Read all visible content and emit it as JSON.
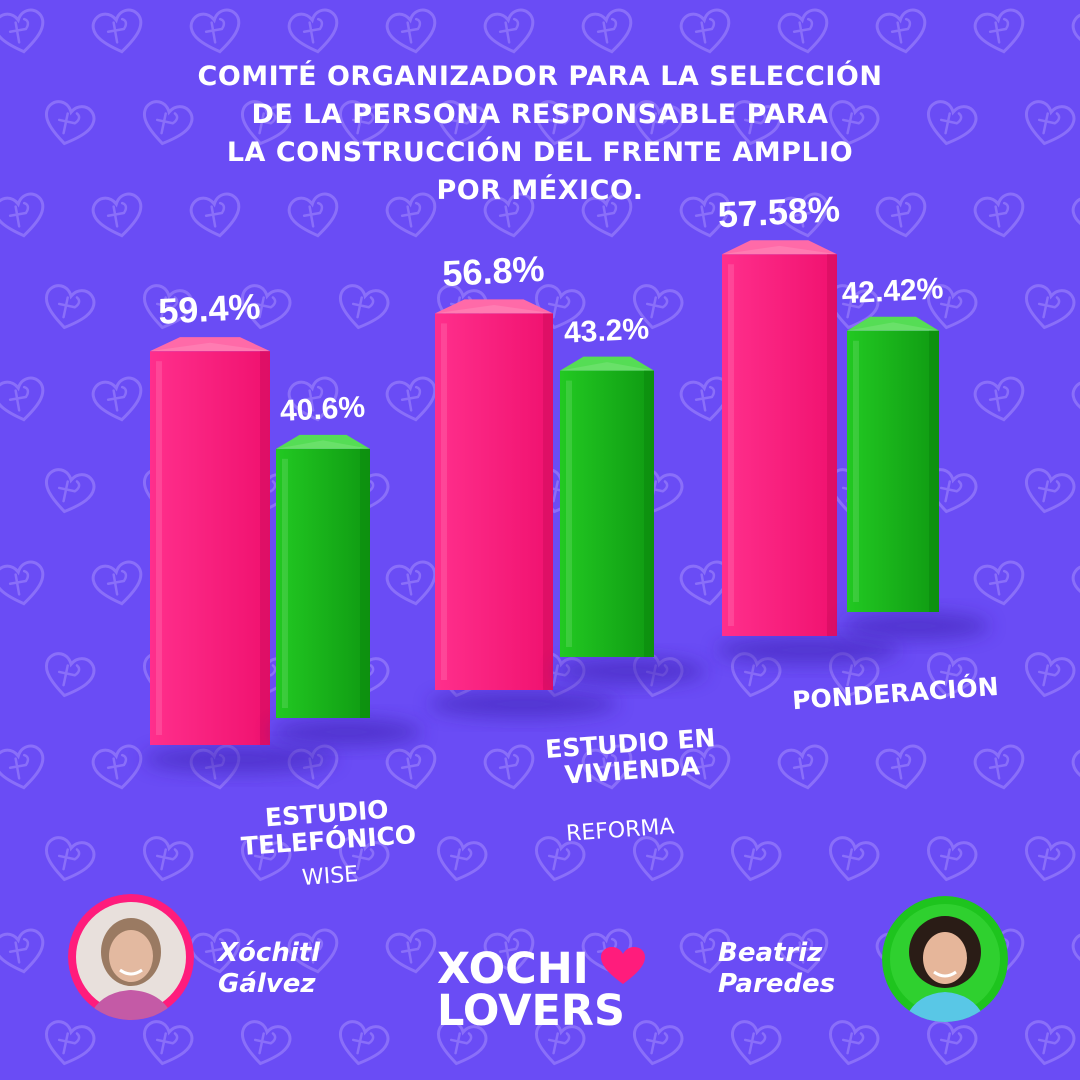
{
  "title_lines": [
    "COMITÉ ORGANIZADOR PARA LA SELECCIÓN",
    "DE LA PERSONA RESPONSABLE PARA",
    "LA CONSTRUCCIÓN DEL FRENTE AMPLIO",
    "POR MÉXICO."
  ],
  "colors": {
    "background": "#6a4cf5",
    "pink": "#ff1c7c",
    "green": "#1ec41e"
  },
  "chart_data": {
    "type": "bar",
    "title": "COMITÉ ORGANIZADOR PARA LA SELECCIÓN DE LA PERSONA RESPONSABLE PARA LA CONSTRUCCIÓN DEL FRENTE AMPLIO POR MÉXICO.",
    "categories": [
      "ESTUDIO TELEFÓNICO",
      "ESTUDIO EN VIVIENDA",
      "PONDERACIÓN"
    ],
    "category_lines": [
      [
        "ESTUDIO",
        "TELEFÓNICO"
      ],
      [
        "ESTUDIO EN",
        "VIVIENDA"
      ],
      [
        "PONDERACIÓN"
      ]
    ],
    "sources": [
      "WISE",
      "REFORMA",
      ""
    ],
    "series": [
      {
        "name": "Xóchitl Gálvez",
        "color": "#ff1c7c",
        "values": [
          59.4,
          56.8,
          57.58
        ],
        "labels": [
          "59.4%",
          "56.8%",
          "57.58%"
        ]
      },
      {
        "name": "Beatriz Paredes",
        "color": "#1ec41e",
        "values": [
          40.6,
          43.2,
          42.42
        ],
        "labels": [
          "40.6%",
          "43.2%",
          "42.42%"
        ]
      }
    ],
    "unit": "%",
    "style": "3d-bars",
    "grid": false
  },
  "candidates": {
    "left": {
      "first": "Xóchitl",
      "last": "Gálvez",
      "ring_color": "#ff1c7c"
    },
    "right": {
      "first": "Beatriz",
      "last": "Paredes",
      "ring_color": "#1ec41e"
    }
  },
  "logo": {
    "line1": "XOCHI",
    "line2": "LOVERS",
    "icon": "heart-icon"
  }
}
